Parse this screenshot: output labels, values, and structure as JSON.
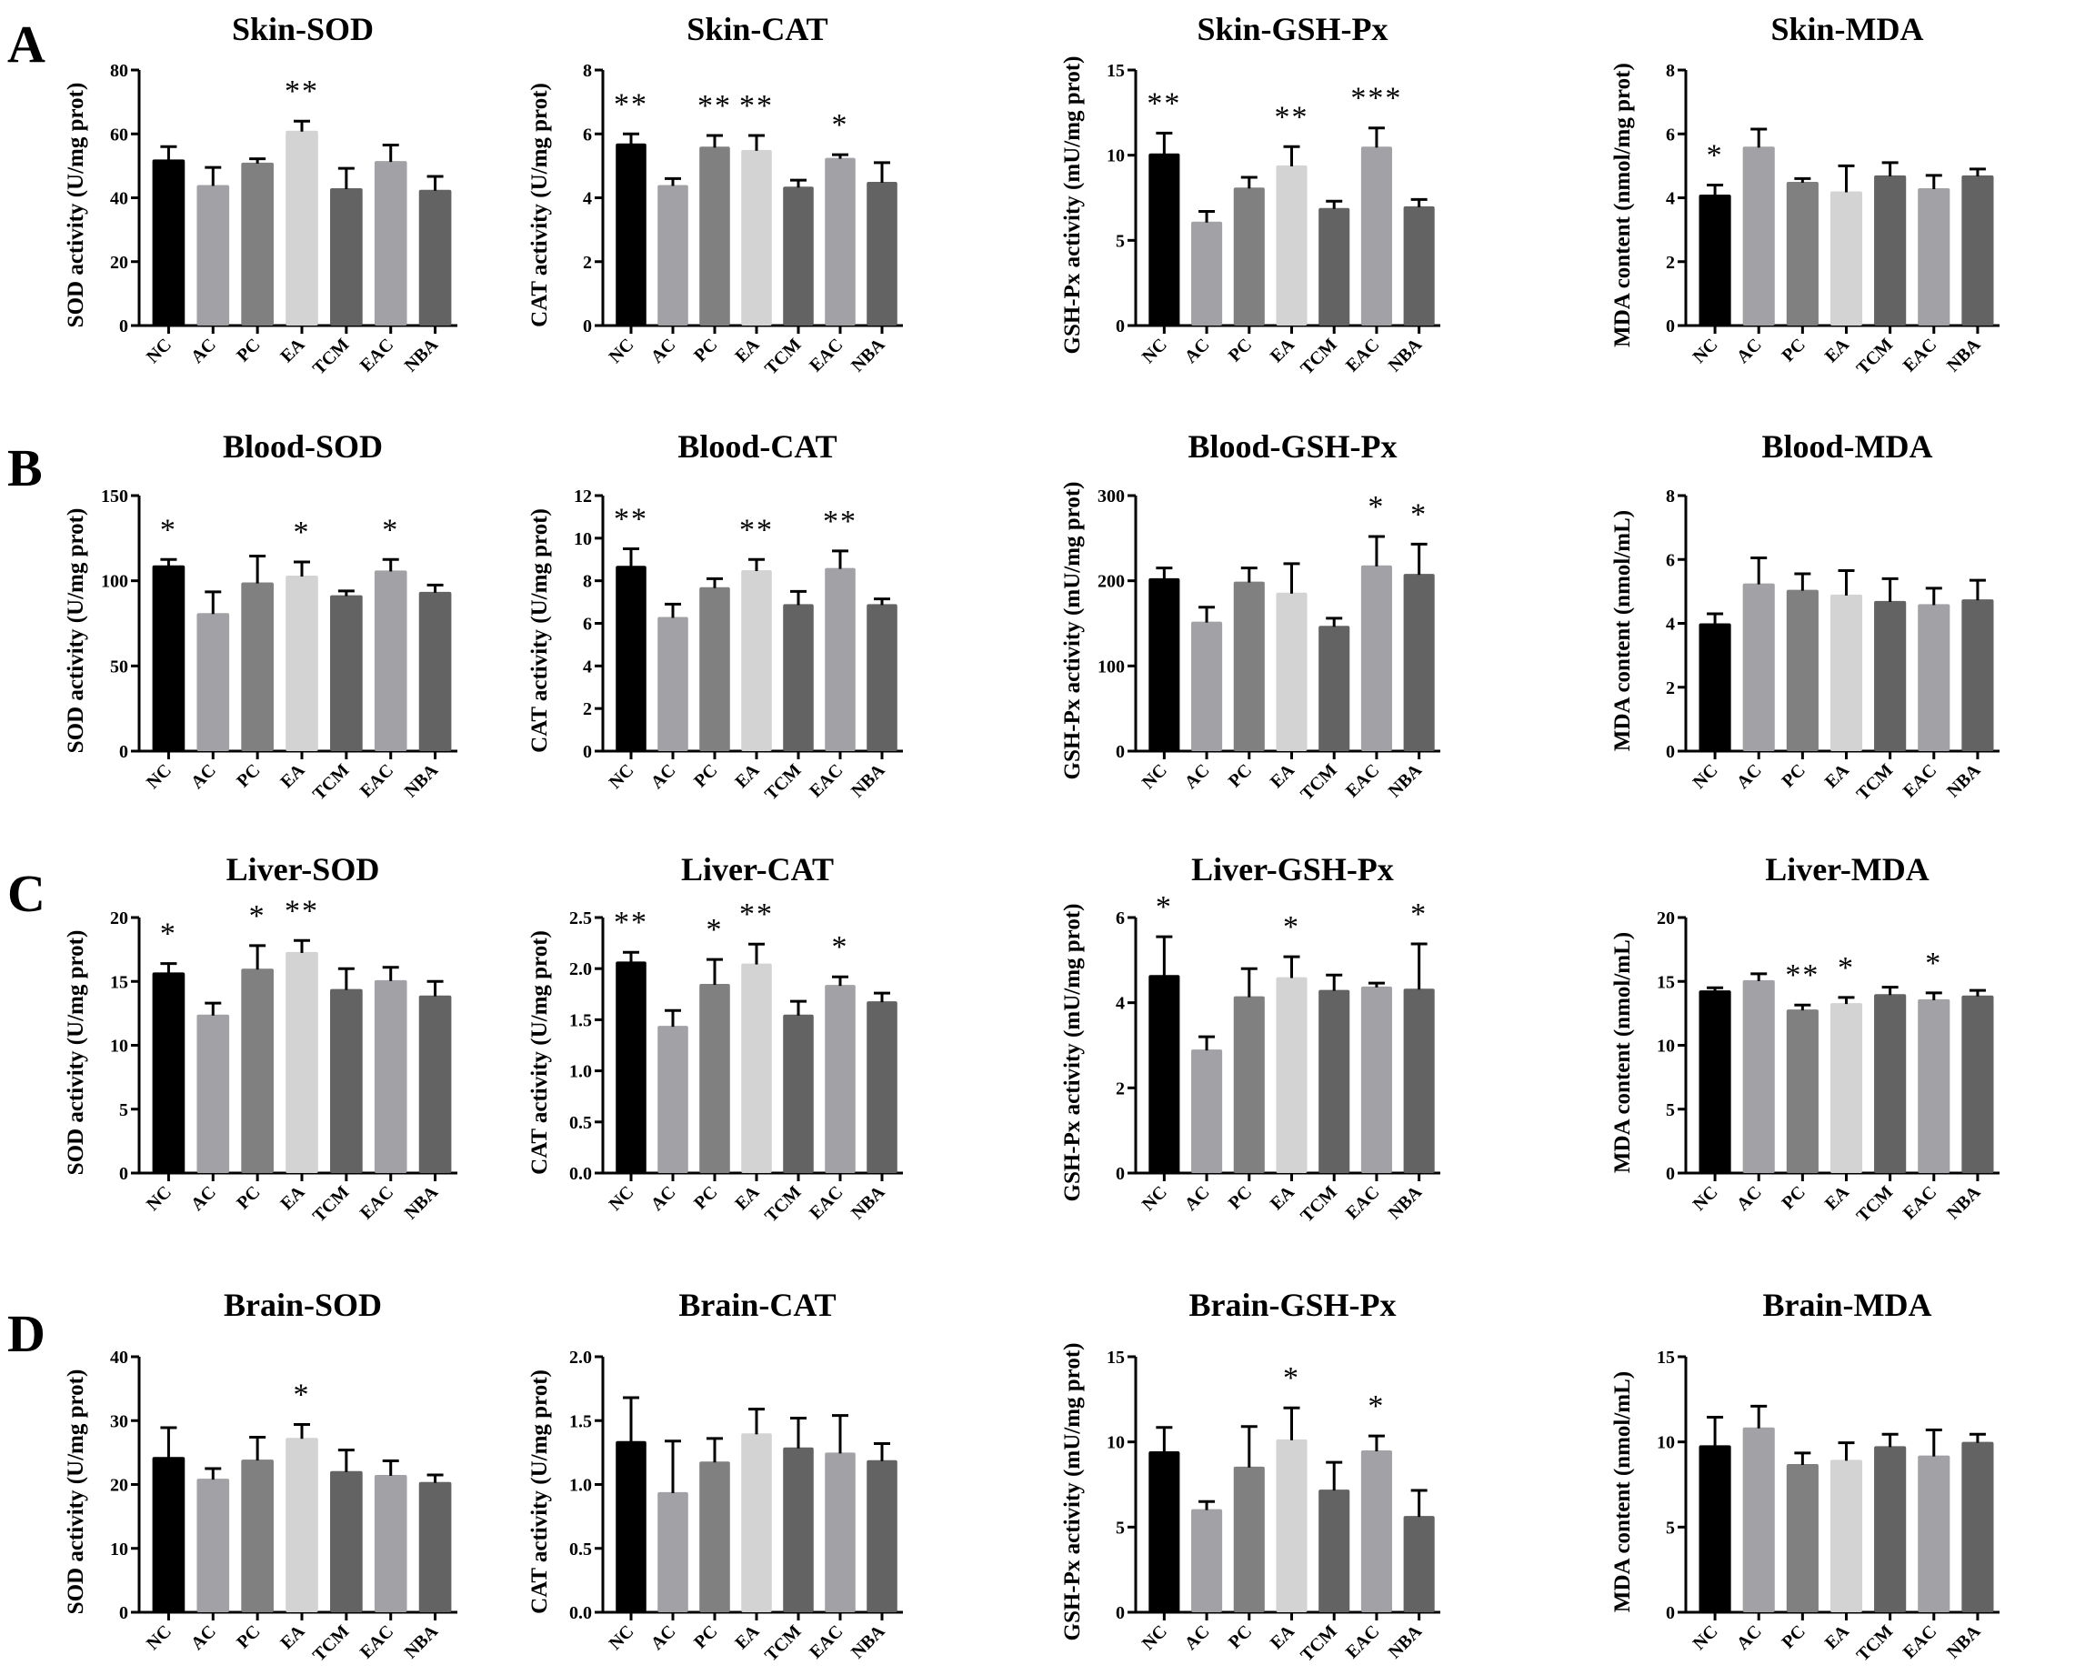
{
  "figure": {
    "row_labels": [
      "A",
      "B",
      "C",
      "D"
    ],
    "groups": [
      "NC",
      "AC",
      "PC",
      "EA",
      "TCM",
      "EAC",
      "NBA"
    ],
    "group_colors": [
      "#000000",
      "#a2a2a6",
      "#808080",
      "#d3d3d3",
      "#636363",
      "#a2a2a6",
      "#636363"
    ]
  },
  "chart_data": [
    {
      "type": "bar",
      "row": "A",
      "title": "Skin-SOD",
      "ylabel": "SOD activity (U/mg prot)",
      "ylim": [
        0,
        80
      ],
      "yticks": [
        "0",
        "20",
        "40",
        "60",
        "80"
      ],
      "categories": [
        "NC",
        "AC",
        "PC",
        "EA",
        "TCM",
        "EAC",
        "NBA"
      ],
      "values": [
        52,
        44,
        51,
        61,
        43,
        51.5,
        42.5
      ],
      "errors": [
        4,
        5.5,
        1.2,
        3,
        6.2,
        5,
        4.2
      ],
      "significance": [
        "",
        "",
        "",
        "**",
        "",
        "",
        ""
      ]
    },
    {
      "type": "bar",
      "row": "A",
      "title": "Skin-CAT",
      "ylabel": "CAT activity (U/mg prot)",
      "ylim": [
        0,
        8
      ],
      "yticks": [
        "0",
        "2",
        "4",
        "6",
        "8"
      ],
      "categories": [
        "NC",
        "AC",
        "PC",
        "EA",
        "TCM",
        "EAC",
        "NBA"
      ],
      "values": [
        5.7,
        4.4,
        5.6,
        5.5,
        4.35,
        5.25,
        4.5
      ],
      "errors": [
        0.3,
        0.2,
        0.35,
        0.45,
        0.2,
        0.1,
        0.6
      ],
      "significance": [
        "**",
        "",
        "**",
        "**",
        "",
        "*",
        ""
      ]
    },
    {
      "type": "bar",
      "row": "A",
      "title": "Skin-GSH-Px",
      "ylabel": "GSH-Px activity (mU/mg prot)",
      "ylim": [
        0,
        15
      ],
      "yticks": [
        "0",
        "5",
        "10",
        "15"
      ],
      "categories": [
        "NC",
        "AC",
        "PC",
        "EA",
        "TCM",
        "EAC",
        "NBA"
      ],
      "values": [
        10.1,
        6.1,
        8.1,
        9.4,
        6.9,
        10.5,
        7.0
      ],
      "errors": [
        1.2,
        0.6,
        0.6,
        1.1,
        0.4,
        1.1,
        0.4
      ],
      "significance": [
        "**",
        "",
        "",
        "**",
        "",
        "***",
        ""
      ]
    },
    {
      "type": "bar",
      "row": "A",
      "title": "Skin-MDA",
      "ylabel": "MDA content (nmol/mg prot)",
      "ylim": [
        0,
        8
      ],
      "yticks": [
        "0",
        "2",
        "4",
        "6",
        "8"
      ],
      "categories": [
        "NC",
        "AC",
        "PC",
        "EA",
        "TCM",
        "EAC",
        "NBA"
      ],
      "values": [
        4.1,
        5.6,
        4.5,
        4.2,
        4.7,
        4.3,
        4.7
      ],
      "errors": [
        0.3,
        0.55,
        0.1,
        0.8,
        0.4,
        0.4,
        0.2
      ],
      "significance": [
        "*",
        "",
        "",
        "",
        "",
        "",
        ""
      ]
    },
    {
      "type": "bar",
      "row": "B",
      "title": "Blood-SOD",
      "ylabel": "SOD activity (U/mg prot)",
      "ylim": [
        0,
        150
      ],
      "yticks": [
        "0",
        "50",
        "100",
        "150"
      ],
      "categories": [
        "NC",
        "AC",
        "PC",
        "EA",
        "TCM",
        "EAC",
        "NBA"
      ],
      "values": [
        109,
        81,
        99,
        103,
        91.5,
        106,
        93.5
      ],
      "errors": [
        3.5,
        12.5,
        15.5,
        8,
        2.5,
        6.5,
        4
      ],
      "significance": [
        "*",
        "",
        "",
        "*",
        "",
        "*",
        ""
      ]
    },
    {
      "type": "bar",
      "row": "B",
      "title": "Blood-CAT",
      "ylabel": "CAT activity (U/mg prot)",
      "ylim": [
        0,
        12
      ],
      "yticks": [
        "0",
        "2",
        "4",
        "6",
        "8",
        "10",
        "12"
      ],
      "categories": [
        "NC",
        "AC",
        "PC",
        "EA",
        "TCM",
        "EAC",
        "NBA"
      ],
      "values": [
        8.7,
        6.3,
        7.7,
        8.5,
        6.9,
        8.6,
        6.9
      ],
      "errors": [
        0.8,
        0.6,
        0.4,
        0.5,
        0.6,
        0.8,
        0.25
      ],
      "significance": [
        "**",
        "",
        "",
        "**",
        "",
        "**",
        ""
      ]
    },
    {
      "type": "bar",
      "row": "B",
      "title": "Blood-GSH-Px",
      "ylabel": "GSH-Px activity (mU/mg prot)",
      "ylim": [
        0,
        300
      ],
      "yticks": [
        "0",
        "100",
        "200",
        "300"
      ],
      "categories": [
        "NC",
        "AC",
        "PC",
        "EA",
        "TCM",
        "EAC",
        "NBA"
      ],
      "values": [
        203,
        152,
        199,
        186,
        147,
        218,
        208
      ],
      "errors": [
        12,
        17,
        16,
        34,
        9,
        34,
        35
      ],
      "significance": [
        "",
        "",
        "",
        "",
        "",
        "*",
        "*"
      ]
    },
    {
      "type": "bar",
      "row": "B",
      "title": "Blood-MDA",
      "ylabel": "MDA content (nmol/mL)",
      "ylim": [
        0,
        8
      ],
      "yticks": [
        "0",
        "2",
        "4",
        "6",
        "8"
      ],
      "categories": [
        "NC",
        "AC",
        "PC",
        "EA",
        "TCM",
        "EAC",
        "NBA"
      ],
      "values": [
        4.0,
        5.25,
        5.05,
        4.9,
        4.7,
        4.6,
        4.75
      ],
      "errors": [
        0.3,
        0.8,
        0.5,
        0.75,
        0.7,
        0.5,
        0.6
      ],
      "significance": [
        "",
        "",
        "",
        "",
        "",
        "",
        ""
      ]
    },
    {
      "type": "bar",
      "row": "C",
      "title": "Liver-SOD",
      "ylabel": "SOD activity (U/mg prot)",
      "ylim": [
        0,
        20
      ],
      "yticks": [
        "0",
        "5",
        "10",
        "15",
        "20"
      ],
      "categories": [
        "NC",
        "AC",
        "PC",
        "EA",
        "TCM",
        "EAC",
        "NBA"
      ],
      "values": [
        15.7,
        12.4,
        16.0,
        17.3,
        14.4,
        15.1,
        13.9
      ],
      "errors": [
        0.7,
        0.9,
        1.8,
        0.9,
        1.6,
        1.0,
        1.1
      ],
      "significance": [
        "*",
        "",
        "*",
        "**",
        "",
        "",
        ""
      ]
    },
    {
      "type": "bar",
      "row": "C",
      "title": "Liver-CAT",
      "ylabel": "CAT activity (U/mg prot)",
      "ylim": [
        0,
        2.5
      ],
      "yticks": [
        "0.0",
        "0.5",
        "1.0",
        "1.5",
        "2.0",
        "2.5"
      ],
      "categories": [
        "NC",
        "AC",
        "PC",
        "EA",
        "TCM",
        "EAC",
        "NBA"
      ],
      "values": [
        2.07,
        1.44,
        1.85,
        2.05,
        1.55,
        1.84,
        1.68
      ],
      "errors": [
        0.09,
        0.15,
        0.24,
        0.19,
        0.13,
        0.08,
        0.08
      ],
      "significance": [
        "**",
        "",
        "*",
        "**",
        "",
        "*",
        ""
      ]
    },
    {
      "type": "bar",
      "row": "C",
      "title": "Liver-GSH-Px",
      "ylabel": "GSH-Px activity (mU/mg prot)",
      "ylim": [
        0,
        6
      ],
      "yticks": [
        "0",
        "2",
        "4",
        "6"
      ],
      "categories": [
        "NC",
        "AC",
        "PC",
        "EA",
        "TCM",
        "EAC",
        "NBA"
      ],
      "values": [
        4.65,
        2.9,
        4.15,
        4.6,
        4.3,
        4.38,
        4.33
      ],
      "errors": [
        0.9,
        0.3,
        0.65,
        0.48,
        0.35,
        0.08,
        1.05
      ],
      "significance": [
        "*",
        "",
        "",
        "*",
        "",
        "",
        "*"
      ]
    },
    {
      "type": "bar",
      "row": "C",
      "title": "Liver-MDA",
      "ylabel": "MDA content (nmol/mL)",
      "ylim": [
        0,
        20
      ],
      "yticks": [
        "0",
        "5",
        "10",
        "15",
        "20"
      ],
      "categories": [
        "NC",
        "AC",
        "PC",
        "EA",
        "TCM",
        "EAC",
        "NBA"
      ],
      "values": [
        14.3,
        15.1,
        12.8,
        13.3,
        14.0,
        13.6,
        13.9
      ],
      "errors": [
        0.2,
        0.5,
        0.35,
        0.45,
        0.55,
        0.5,
        0.4
      ],
      "significance": [
        "",
        "",
        "**",
        "*",
        "",
        "*",
        ""
      ]
    },
    {
      "type": "bar",
      "row": "D",
      "title": "Brain-SOD",
      "ylabel": "SOD activity (U/mg prot)",
      "ylim": [
        0,
        40
      ],
      "yticks": [
        "0",
        "10",
        "20",
        "30",
        "40"
      ],
      "categories": [
        "NC",
        "AC",
        "PC",
        "EA",
        "TCM",
        "EAC",
        "NBA"
      ],
      "values": [
        24.3,
        20.9,
        23.9,
        27.3,
        22.1,
        21.5,
        20.4
      ],
      "errors": [
        4.6,
        1.6,
        3.5,
        2.1,
        3.3,
        2.2,
        1.1
      ],
      "significance": [
        "",
        "",
        "",
        "*",
        "",
        "",
        ""
      ]
    },
    {
      "type": "bar",
      "row": "D",
      "title": "Brain-CAT",
      "ylabel": "CAT activity (U/mg prot)",
      "ylim": [
        0,
        2.0
      ],
      "yticks": [
        "0.0",
        "0.5",
        "1.0",
        "1.5",
        "2.0"
      ],
      "categories": [
        "NC",
        "AC",
        "PC",
        "EA",
        "TCM",
        "EAC",
        "NBA"
      ],
      "values": [
        1.34,
        0.94,
        1.18,
        1.4,
        1.29,
        1.25,
        1.19
      ],
      "errors": [
        0.34,
        0.4,
        0.18,
        0.19,
        0.23,
        0.29,
        0.13
      ],
      "significance": [
        "",
        "",
        "",
        "",
        "",
        "",
        ""
      ]
    },
    {
      "type": "bar",
      "row": "D",
      "title": "Brain-GSH-Px",
      "ylabel": "GSH-Px activity (mU/mg prot)",
      "ylim": [
        0,
        15
      ],
      "yticks": [
        "0",
        "5",
        "10",
        "15"
      ],
      "categories": [
        "NC",
        "AC",
        "PC",
        "EA",
        "TCM",
        "EAC",
        "NBA"
      ],
      "values": [
        9.45,
        6.05,
        8.55,
        10.15,
        7.2,
        9.5,
        5.65
      ],
      "errors": [
        1.4,
        0.45,
        2.35,
        1.85,
        1.6,
        0.85,
        1.5
      ],
      "significance": [
        "",
        "",
        "",
        "*",
        "",
        "*",
        ""
      ]
    },
    {
      "type": "bar",
      "row": "D",
      "title": "Brain-MDA",
      "ylabel": "MDA content (nmol/mL)",
      "ylim": [
        0,
        15
      ],
      "yticks": [
        "0",
        "5",
        "10",
        "15"
      ],
      "categories": [
        "NC",
        "AC",
        "PC",
        "EA",
        "TCM",
        "EAC",
        "NBA"
      ],
      "values": [
        9.8,
        10.85,
        8.7,
        8.95,
        9.75,
        9.2,
        10.0
      ],
      "errors": [
        1.65,
        1.25,
        0.65,
        1.0,
        0.7,
        1.5,
        0.45
      ],
      "significance": [
        "",
        "",
        "",
        "",
        "",
        "",
        ""
      ]
    }
  ]
}
